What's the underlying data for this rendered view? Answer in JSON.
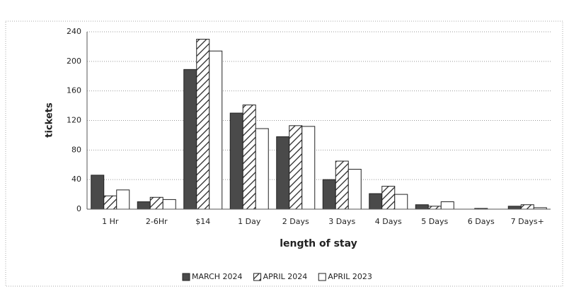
{
  "chart_data": {
    "type": "bar",
    "categories": [
      "1 Hr",
      "2-6Hr",
      "$14",
      "1 Day",
      "2 Days",
      "3 Days",
      "4 Days",
      "5 Days",
      "6 Days",
      "7 Days+"
    ],
    "series": [
      {
        "name": "MARCH 2024",
        "color": "#4a4a4a",
        "hatch": false,
        "values": [
          46,
          10,
          189,
          130,
          98,
          40,
          21,
          6,
          0,
          4
        ]
      },
      {
        "name": "APRIL 2024",
        "color": "#ffffff",
        "hatch": true,
        "values": [
          18,
          16,
          230,
          141,
          113,
          65,
          31,
          4,
          1,
          6
        ]
      },
      {
        "name": "APRIL 2023",
        "color": "#ffffff",
        "hatch": false,
        "values": [
          26,
          13,
          214,
          109,
          112,
          54,
          20,
          10,
          0,
          2
        ]
      }
    ],
    "ylim": [
      0,
      240
    ],
    "yticks": [
      0,
      40,
      80,
      120,
      160,
      200,
      240
    ],
    "grid": true,
    "ylabel": "tickets",
    "xlabel": "length of stay",
    "legend": "bottom"
  }
}
